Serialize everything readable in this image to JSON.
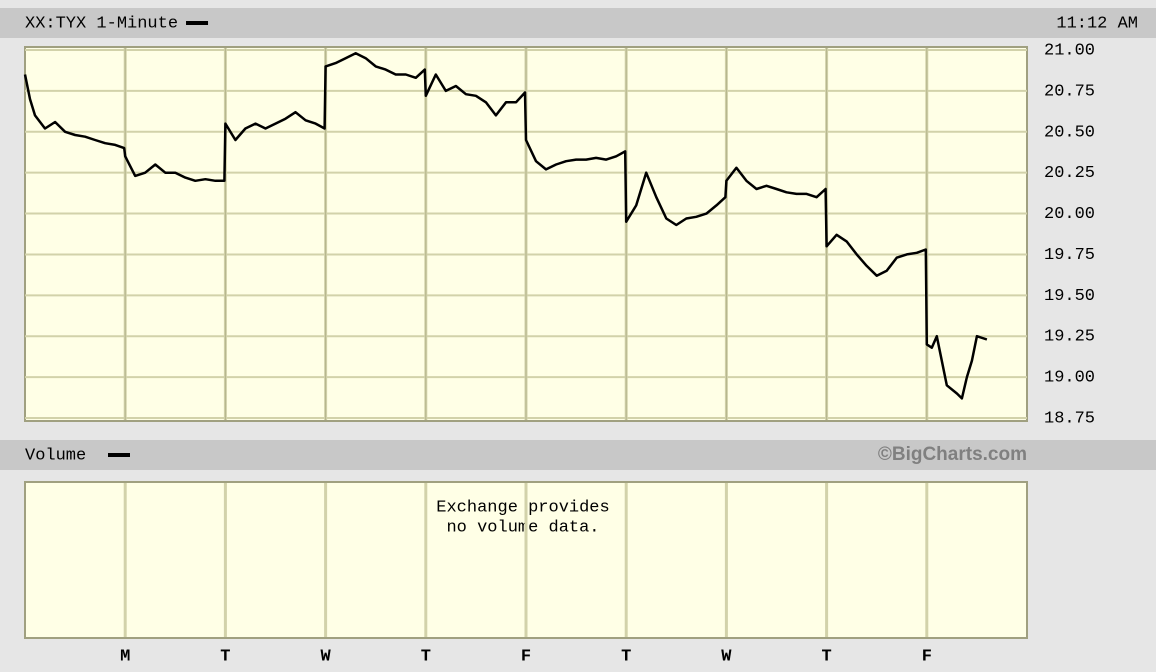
{
  "chart_data": {
    "type": "line",
    "timestamp": "11:12 AM",
    "volume_label": "Volume",
    "credit": "©BigCharts.com",
    "annotations": [
      "Exchange provides",
      "no volume data."
    ],
    "xlim": [
      0,
      10
    ],
    "xticks": [
      {
        "value": 1,
        "label": "M"
      },
      {
        "value": 2,
        "label": "T"
      },
      {
        "value": 3,
        "label": "W"
      },
      {
        "value": 4,
        "label": "T"
      },
      {
        "value": 5,
        "label": "F"
      },
      {
        "value": 6,
        "label": "T"
      },
      {
        "value": 7,
        "label": "W"
      },
      {
        "value": 8,
        "label": "T"
      },
      {
        "value": 9,
        "label": "F"
      }
    ],
    "ylim": [
      18.75,
      21.0
    ],
    "yticks": [
      {
        "value": 18.75,
        "label": "18.75"
      },
      {
        "value": 19.0,
        "label": "19.00"
      },
      {
        "value": 19.25,
        "label": "19.25"
      },
      {
        "value": 19.5,
        "label": "19.50"
      },
      {
        "value": 19.75,
        "label": "19.75"
      },
      {
        "value": 20.0,
        "label": "20.00"
      },
      {
        "value": 20.25,
        "label": "20.25"
      },
      {
        "value": 20.5,
        "label": "20.50"
      },
      {
        "value": 20.75,
        "label": "20.75"
      },
      {
        "value": 21.0,
        "label": "21.00"
      }
    ],
    "grid": true,
    "x": [
      0,
      0.05,
      0.1,
      0.2,
      0.3,
      0.4,
      0.5,
      0.6,
      0.7,
      0.8,
      0.9,
      0.99,
      1.0,
      1.1,
      1.2,
      1.3,
      1.4,
      1.5,
      1.6,
      1.7,
      1.8,
      1.9,
      1.99,
      2.0,
      2.1,
      2.2,
      2.3,
      2.4,
      2.5,
      2.6,
      2.7,
      2.8,
      2.9,
      2.99,
      3.0,
      3.1,
      3.2,
      3.3,
      3.4,
      3.5,
      3.6,
      3.7,
      3.8,
      3.9,
      3.99,
      4.0,
      4.1,
      4.2,
      4.3,
      4.4,
      4.5,
      4.6,
      4.7,
      4.8,
      4.9,
      4.99,
      5.0,
      5.1,
      5.2,
      5.3,
      5.4,
      5.5,
      5.6,
      5.7,
      5.8,
      5.9,
      5.99,
      6.0,
      6.1,
      6.2,
      6.3,
      6.4,
      6.5,
      6.6,
      6.7,
      6.8,
      6.9,
      6.99,
      7.0,
      7.1,
      7.2,
      7.3,
      7.4,
      7.5,
      7.6,
      7.7,
      7.8,
      7.9,
      7.99,
      8.0,
      8.1,
      8.2,
      8.3,
      8.4,
      8.5,
      8.6,
      8.7,
      8.8,
      8.9,
      8.99,
      9.0,
      9.05,
      9.1,
      9.15,
      9.2,
      9.3,
      9.35,
      9.4,
      9.45,
      9.5,
      9.6
    ],
    "series": [
      {
        "name": "XX:TYX 1-Minute",
        "color": "#000000",
        "values": [
          20.85,
          20.7,
          20.6,
          20.52,
          20.56,
          20.5,
          20.48,
          20.47,
          20.45,
          20.43,
          20.42,
          20.4,
          20.35,
          20.23,
          20.25,
          20.3,
          20.25,
          20.25,
          20.22,
          20.2,
          20.21,
          20.2,
          20.2,
          20.55,
          20.45,
          20.52,
          20.55,
          20.52,
          20.55,
          20.58,
          20.62,
          20.57,
          20.55,
          20.52,
          20.9,
          20.92,
          20.95,
          20.98,
          20.95,
          20.9,
          20.88,
          20.85,
          20.85,
          20.83,
          20.88,
          20.72,
          20.85,
          20.75,
          20.78,
          20.73,
          20.72,
          20.68,
          20.6,
          20.68,
          20.68,
          20.74,
          20.45,
          20.32,
          20.27,
          20.3,
          20.32,
          20.33,
          20.33,
          20.34,
          20.33,
          20.35,
          20.38,
          19.95,
          20.05,
          20.25,
          20.1,
          19.97,
          19.93,
          19.97,
          19.98,
          20.0,
          20.05,
          20.1,
          20.2,
          20.28,
          20.2,
          20.15,
          20.17,
          20.15,
          20.13,
          20.12,
          20.12,
          20.1,
          20.15,
          19.8,
          19.87,
          19.83,
          19.75,
          19.68,
          19.62,
          19.65,
          19.73,
          19.75,
          19.76,
          19.78,
          19.2,
          19.18,
          19.25,
          19.1,
          18.95,
          18.9,
          18.87,
          19.0,
          19.1,
          19.25,
          19.23
        ]
      }
    ]
  }
}
